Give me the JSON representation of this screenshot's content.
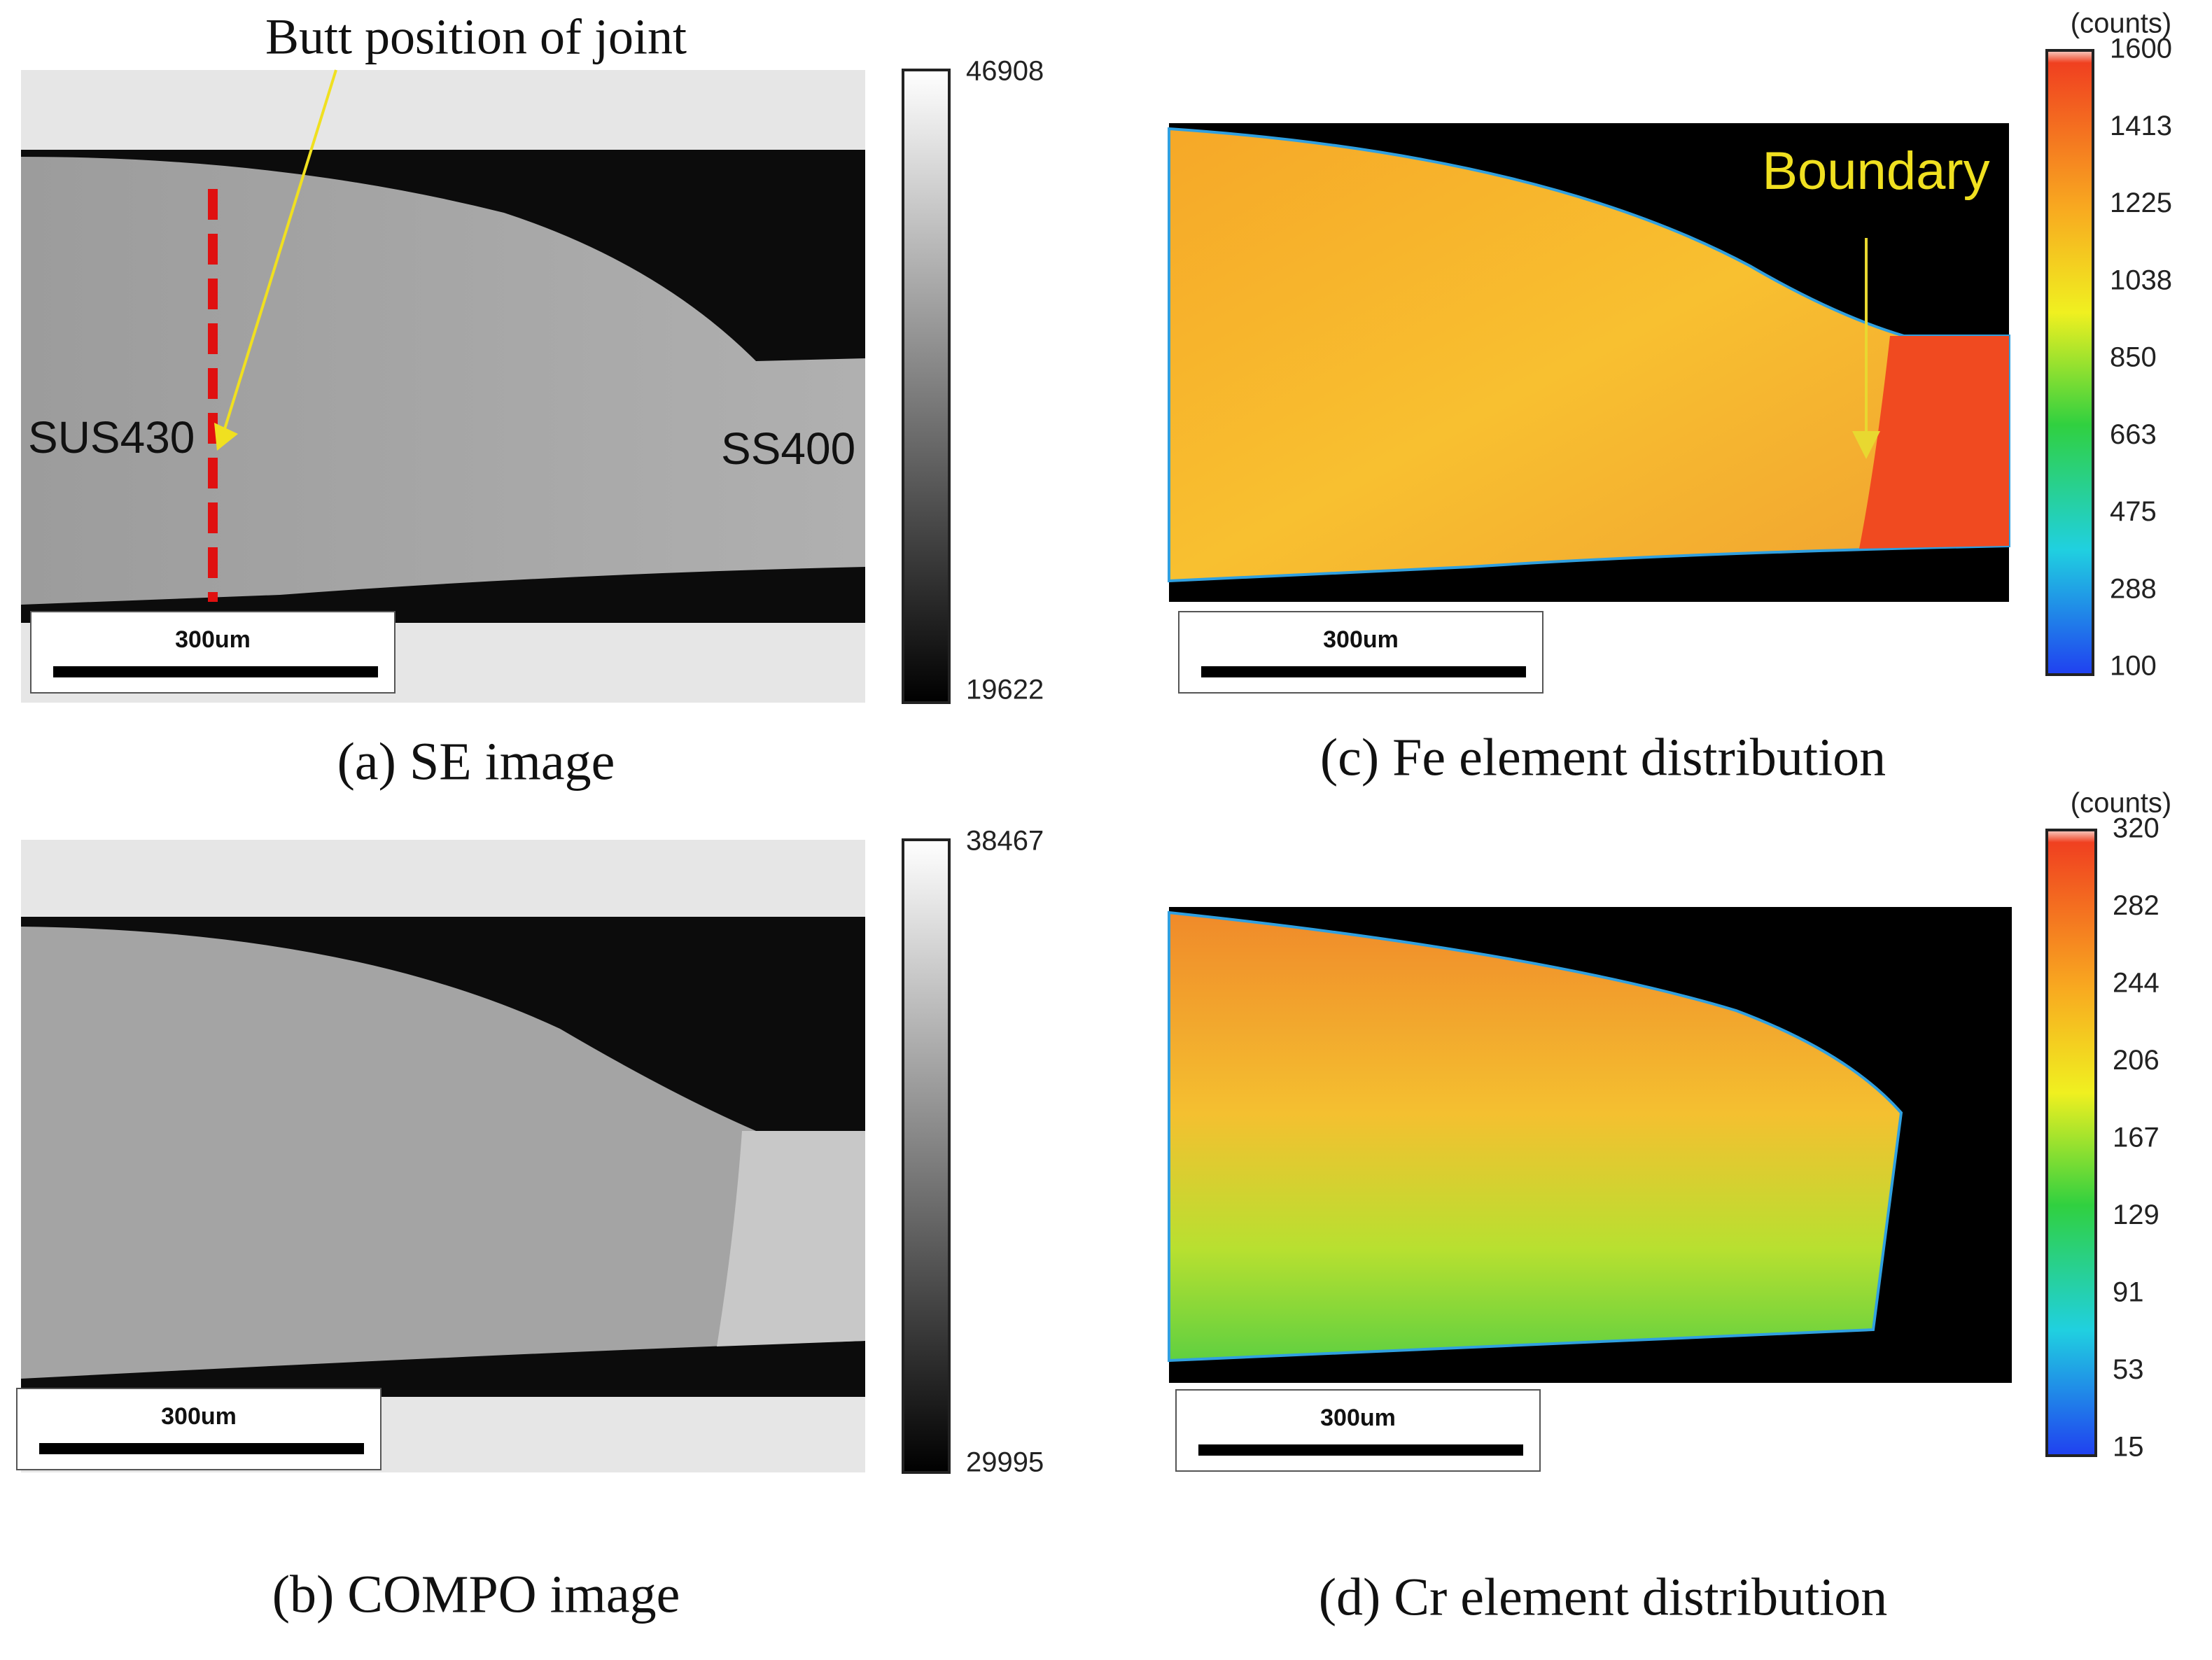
{
  "panels": [
    {
      "caption": "(a) SE image",
      "annotations": {
        "title": "Butt position of joint",
        "left": "SUS430",
        "right": "SS400"
      },
      "scale_bar": "300um",
      "colorbar": {
        "labels": [
          "46908",
          "19622"
        ]
      }
    },
    {
      "caption": "(b) COMPO image",
      "scale_bar": "300um",
      "colorbar": {
        "labels": [
          "38467",
          "29995"
        ]
      }
    },
    {
      "caption": "(c) Fe element distribution",
      "annotations": {
        "boundary": "Boundary"
      },
      "scale_bar": "300um",
      "colorbar": {
        "unit": "(counts)",
        "labels": [
          "1600",
          "1413",
          "1225",
          "1038",
          "850",
          "663",
          "475",
          "288",
          "100"
        ]
      }
    },
    {
      "caption": "(d) Cr element distribution",
      "scale_bar": "300um",
      "colorbar": {
        "unit": "(counts)",
        "labels": [
          "320",
          "282",
          "244",
          "206",
          "167",
          "129",
          "91",
          "53",
          "15"
        ]
      }
    }
  ]
}
